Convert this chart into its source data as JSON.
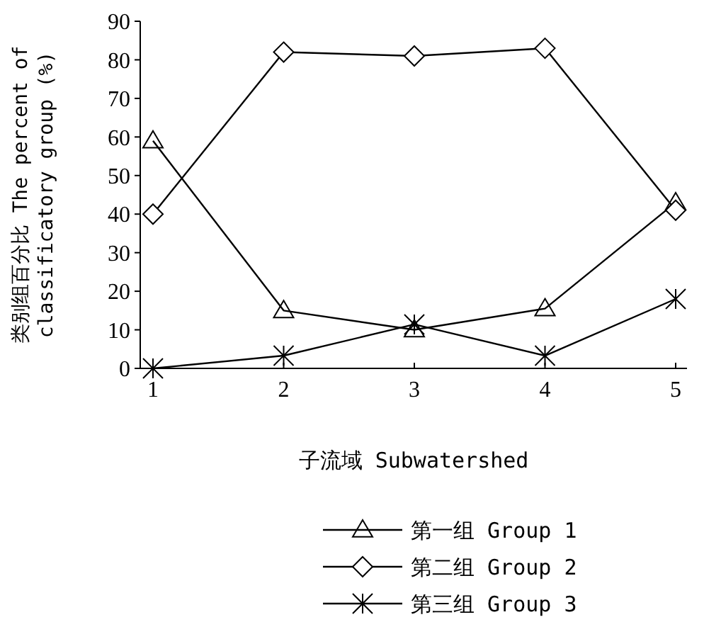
{
  "chart_data": {
    "type": "line",
    "xlabel": "子流域 Subwatershed",
    "ylabel": "类别组百分比 The percent of classificatory group (%)",
    "categories": [
      "1",
      "2",
      "3",
      "4",
      "5"
    ],
    "ylim": [
      0,
      90
    ],
    "yticks": [
      0,
      10,
      20,
      30,
      40,
      50,
      60,
      70,
      80,
      90
    ],
    "grid": false,
    "legend": "bottom",
    "series": [
      {
        "name": "第一组 Group 1",
        "color": "#000000",
        "marker": "triangle",
        "values": [
          59,
          15,
          10,
          15.5,
          43
        ]
      },
      {
        "name": "第二组 Group 2",
        "color": "#000000",
        "marker": "diamond",
        "values": [
          40,
          82,
          81,
          83,
          41
        ]
      },
      {
        "name": "第三组 Group 3",
        "color": "#000000",
        "marker": "cross",
        "values": [
          0,
          3.3,
          11.4,
          3.3,
          18
        ]
      }
    ]
  }
}
